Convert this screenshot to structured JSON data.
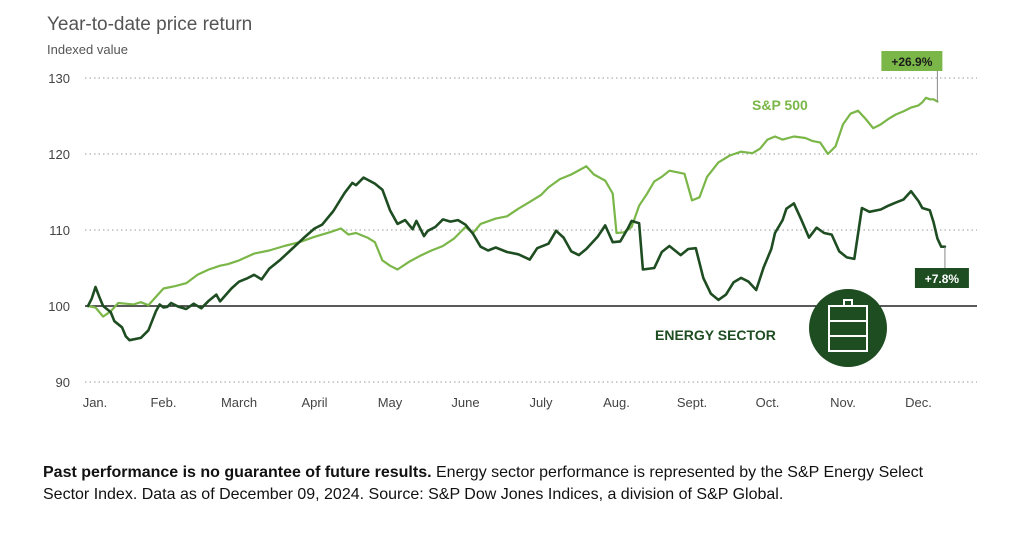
{
  "chart_data": {
    "type": "line",
    "title": "Year-to-date price return",
    "ylabel": "Indexed value",
    "xlabel": "",
    "ylim": [
      90,
      130
    ],
    "yticks": [
      90,
      100,
      110,
      120,
      130
    ],
    "months": [
      "Jan.",
      "Feb.",
      "March",
      "April",
      "May",
      "June",
      "July",
      "Aug.",
      "Sept.",
      "Oct.",
      "Nov.",
      "Dec."
    ],
    "baseline": 100,
    "grid": "dotted horizontal",
    "series": [
      {
        "name": "S&P 500",
        "color": "#7ab648",
        "end_label": "+26.9%",
        "points": [
          [
            0.0,
            100
          ],
          [
            0.1,
            99.8
          ],
          [
            0.2,
            98.6
          ],
          [
            0.3,
            99.3
          ],
          [
            0.4,
            100.4
          ],
          [
            0.5,
            100.3
          ],
          [
            0.6,
            100.2
          ],
          [
            0.7,
            100.5
          ],
          [
            0.8,
            100.1
          ],
          [
            0.9,
            101.2
          ],
          [
            1.0,
            102.3
          ],
          [
            1.15,
            102.6
          ],
          [
            1.3,
            103.0
          ],
          [
            1.45,
            104.1
          ],
          [
            1.6,
            104.8
          ],
          [
            1.75,
            105.3
          ],
          [
            1.85,
            105.5
          ],
          [
            2.0,
            106.0
          ],
          [
            2.2,
            106.9
          ],
          [
            2.4,
            107.3
          ],
          [
            2.6,
            107.9
          ],
          [
            2.8,
            108.4
          ],
          [
            3.0,
            109.1
          ],
          [
            3.2,
            109.7
          ],
          [
            3.35,
            110.2
          ],
          [
            3.45,
            109.4
          ],
          [
            3.55,
            109.6
          ],
          [
            3.7,
            109.0
          ],
          [
            3.8,
            108.4
          ],
          [
            3.9,
            106.0
          ],
          [
            4.0,
            105.3
          ],
          [
            4.1,
            104.8
          ],
          [
            4.25,
            105.8
          ],
          [
            4.4,
            106.6
          ],
          [
            4.55,
            107.3
          ],
          [
            4.7,
            107.9
          ],
          [
            4.85,
            108.9
          ],
          [
            5.0,
            110.4
          ],
          [
            5.1,
            109.6
          ],
          [
            5.2,
            110.8
          ],
          [
            5.4,
            111.5
          ],
          [
            5.55,
            111.8
          ],
          [
            5.7,
            112.8
          ],
          [
            5.85,
            113.7
          ],
          [
            6.0,
            114.6
          ],
          [
            6.1,
            115.6
          ],
          [
            6.25,
            116.7
          ],
          [
            6.4,
            117.3
          ],
          [
            6.55,
            118.1
          ],
          [
            6.6,
            118.4
          ],
          [
            6.7,
            117.3
          ],
          [
            6.85,
            116.5
          ],
          [
            6.95,
            114.8
          ],
          [
            7.0,
            109.6
          ],
          [
            7.1,
            109.7
          ],
          [
            7.2,
            110.4
          ],
          [
            7.3,
            113.2
          ],
          [
            7.4,
            114.7
          ],
          [
            7.5,
            116.4
          ],
          [
            7.6,
            117.0
          ],
          [
            7.7,
            117.8
          ],
          [
            7.8,
            117.6
          ],
          [
            7.9,
            117.4
          ],
          [
            8.0,
            113.9
          ],
          [
            8.1,
            114.3
          ],
          [
            8.2,
            117.0
          ],
          [
            8.35,
            118.9
          ],
          [
            8.5,
            119.8
          ],
          [
            8.65,
            120.3
          ],
          [
            8.8,
            120.1
          ],
          [
            8.9,
            120.7
          ],
          [
            9.0,
            121.9
          ],
          [
            9.1,
            122.3
          ],
          [
            9.2,
            121.9
          ],
          [
            9.35,
            122.3
          ],
          [
            9.5,
            122.1
          ],
          [
            9.6,
            121.7
          ],
          [
            9.7,
            121.5
          ],
          [
            9.8,
            120.0
          ],
          [
            9.9,
            121.0
          ],
          [
            10.0,
            123.9
          ],
          [
            10.1,
            125.3
          ],
          [
            10.2,
            125.7
          ],
          [
            10.3,
            124.6
          ],
          [
            10.4,
            123.4
          ],
          [
            10.5,
            123.9
          ],
          [
            10.6,
            124.6
          ],
          [
            10.7,
            125.2
          ],
          [
            10.8,
            125.6
          ],
          [
            10.9,
            126.1
          ],
          [
            11.0,
            126.4
          ],
          [
            11.05,
            126.8
          ],
          [
            11.1,
            127.4
          ],
          [
            11.15,
            127.2
          ],
          [
            11.2,
            127.2
          ],
          [
            11.25,
            126.9
          ]
        ]
      },
      {
        "name": "ENERGY SECTOR",
        "color": "#1f4d22",
        "end_label": "+7.8%",
        "points": [
          [
            0.0,
            100
          ],
          [
            0.05,
            101.0
          ],
          [
            0.1,
            102.5
          ],
          [
            0.15,
            101.2
          ],
          [
            0.2,
            100.0
          ],
          [
            0.3,
            99.2
          ],
          [
            0.35,
            98.0
          ],
          [
            0.45,
            97.2
          ],
          [
            0.5,
            96.0
          ],
          [
            0.55,
            95.5
          ],
          [
            0.7,
            95.8
          ],
          [
            0.8,
            96.8
          ],
          [
            0.9,
            99.3
          ],
          [
            0.95,
            100.2
          ],
          [
            1.0,
            99.8
          ],
          [
            1.05,
            99.9
          ],
          [
            1.1,
            100.4
          ],
          [
            1.2,
            99.9
          ],
          [
            1.3,
            99.6
          ],
          [
            1.4,
            100.3
          ],
          [
            1.5,
            99.7
          ],
          [
            1.6,
            100.7
          ],
          [
            1.7,
            101.5
          ],
          [
            1.75,
            100.6
          ],
          [
            1.9,
            102.3
          ],
          [
            2.0,
            103.2
          ],
          [
            2.1,
            103.6
          ],
          [
            2.2,
            104.1
          ],
          [
            2.3,
            103.5
          ],
          [
            2.4,
            104.9
          ],
          [
            2.55,
            106.1
          ],
          [
            2.7,
            107.5
          ],
          [
            2.85,
            108.9
          ],
          [
            3.0,
            110.2
          ],
          [
            3.1,
            110.7
          ],
          [
            3.25,
            112.5
          ],
          [
            3.4,
            114.9
          ],
          [
            3.5,
            116.2
          ],
          [
            3.55,
            115.9
          ],
          [
            3.65,
            116.9
          ],
          [
            3.8,
            116.1
          ],
          [
            3.9,
            115.3
          ],
          [
            4.0,
            112.6
          ],
          [
            4.1,
            110.8
          ],
          [
            4.2,
            111.3
          ],
          [
            4.3,
            110.1
          ],
          [
            4.35,
            111.2
          ],
          [
            4.45,
            109.2
          ],
          [
            4.5,
            109.9
          ],
          [
            4.6,
            110.4
          ],
          [
            4.7,
            111.4
          ],
          [
            4.8,
            111.1
          ],
          [
            4.9,
            111.3
          ],
          [
            5.0,
            110.7
          ],
          [
            5.1,
            109.5
          ],
          [
            5.2,
            107.8
          ],
          [
            5.3,
            107.3
          ],
          [
            5.4,
            107.7
          ],
          [
            5.55,
            107.1
          ],
          [
            5.7,
            106.8
          ],
          [
            5.85,
            106.1
          ],
          [
            5.95,
            107.6
          ],
          [
            6.1,
            108.2
          ],
          [
            6.2,
            109.9
          ],
          [
            6.3,
            109.0
          ],
          [
            6.4,
            107.2
          ],
          [
            6.5,
            106.7
          ],
          [
            6.6,
            107.5
          ],
          [
            6.75,
            109.1
          ],
          [
            6.85,
            110.6
          ],
          [
            6.95,
            108.4
          ],
          [
            7.05,
            108.5
          ],
          [
            7.15,
            110.2
          ],
          [
            7.2,
            111.2
          ],
          [
            7.3,
            110.9
          ],
          [
            7.35,
            104.8
          ],
          [
            7.5,
            105.0
          ],
          [
            7.6,
            107.1
          ],
          [
            7.7,
            107.9
          ],
          [
            7.85,
            106.7
          ],
          [
            7.95,
            107.5
          ],
          [
            8.05,
            107.6
          ],
          [
            8.15,
            103.7
          ],
          [
            8.25,
            101.6
          ],
          [
            8.35,
            100.8
          ],
          [
            8.45,
            101.5
          ],
          [
            8.55,
            103.1
          ],
          [
            8.65,
            103.7
          ],
          [
            8.75,
            103.2
          ],
          [
            8.85,
            102.1
          ],
          [
            8.95,
            105.1
          ],
          [
            9.05,
            107.5
          ],
          [
            9.1,
            109.6
          ],
          [
            9.2,
            111.3
          ],
          [
            9.25,
            112.8
          ],
          [
            9.35,
            113.5
          ],
          [
            9.45,
            111.3
          ],
          [
            9.55,
            109.0
          ],
          [
            9.65,
            110.3
          ],
          [
            9.75,
            109.6
          ],
          [
            9.85,
            109.4
          ],
          [
            9.95,
            107.2
          ],
          [
            10.05,
            106.4
          ],
          [
            10.15,
            106.2
          ],
          [
            10.25,
            112.9
          ],
          [
            10.35,
            112.4
          ],
          [
            10.5,
            112.7
          ],
          [
            10.6,
            113.2
          ],
          [
            10.7,
            113.6
          ],
          [
            10.8,
            114.0
          ],
          [
            10.9,
            115.1
          ],
          [
            11.0,
            113.8
          ],
          [
            11.05,
            112.9
          ],
          [
            11.15,
            112.6
          ],
          [
            11.2,
            111.0
          ],
          [
            11.25,
            108.9
          ],
          [
            11.3,
            107.8
          ],
          [
            11.35,
            107.8
          ]
        ]
      }
    ]
  },
  "footnote": {
    "bold": "Past performance is no guarantee of future results.",
    "text": " Energy sector performance is represented by the S&P Energy Select Sector Index. Data as of December 09, 2024. Source: S&P Dow Jones Indices, a division of S&P Global."
  }
}
